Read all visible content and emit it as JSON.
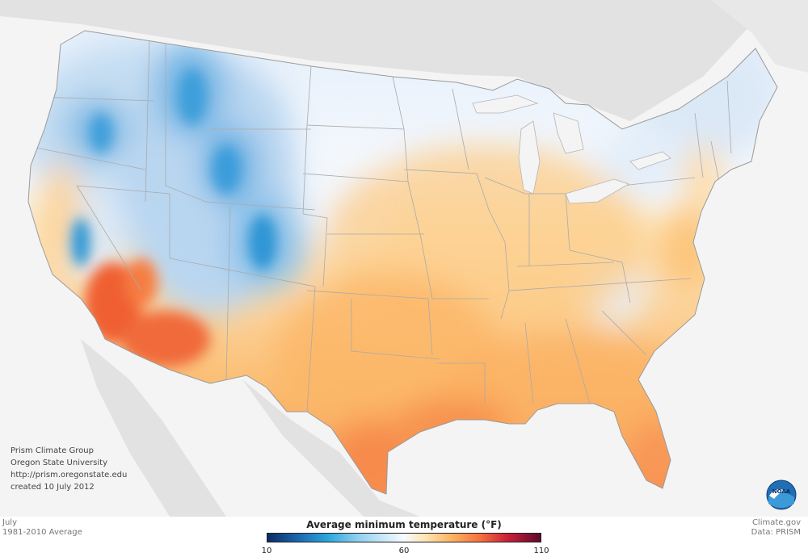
{
  "source": {
    "line1": "Prism Climate Group",
    "line2": "Oregon State University",
    "line3": "http://prism.oregonstate.edu",
    "line4": "created 10 July 2012"
  },
  "period": {
    "month": "July",
    "normal": "1981-2010 Average"
  },
  "credits": {
    "site": "Climate.gov",
    "data": "Data: PRISM"
  },
  "legend": {
    "title": "Average minimum temperature  (°F)",
    "ticks": [
      {
        "label": "10",
        "value": 10
      },
      {
        "label": "60",
        "value": 60
      },
      {
        "label": "110",
        "value": 110
      }
    ],
    "min": 10,
    "max": 110
  },
  "logo": {
    "text": "NOAA"
  },
  "colors": {
    "cold": "#1d8fd0",
    "neutral": "#f7fbff",
    "warm": "#fbbf6a",
    "hot": "#f05a2d",
    "background": "#f4f4f4",
    "land_outside": "#e2e2e2"
  }
}
